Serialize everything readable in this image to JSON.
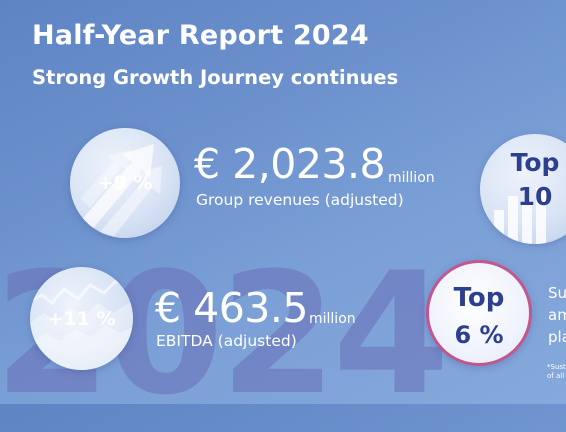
{
  "header": {
    "title": "Half-Year Report 2024",
    "subtitle": "Strong Growth Journey continues"
  },
  "background": {
    "year": "2024"
  },
  "kpis": [
    {
      "change": "+9 %",
      "value": "€ 2,023.8",
      "unit": "million",
      "label": "Group revenues (adjusted)",
      "icon": "arrow-up-icon"
    },
    {
      "change": "+11 %",
      "value": "€ 463.5",
      "unit": "million",
      "label": "EBITDA (adjusted)",
      "icon": "mountain-chart-icon"
    }
  ],
  "badges": [
    {
      "top": "Top",
      "rank": "10",
      "icon": "bar-chart-icon"
    },
    {
      "top": "Top",
      "rank": "6 %"
    }
  ],
  "side_text": [
    "Su",
    "am",
    "pla"
  ],
  "footnote": [
    "*Sust",
    "of all"
  ],
  "colors": {
    "background": "#6c91cd",
    "accent_navy": "#2d3f8f",
    "ring_pink": "#c2568f",
    "watermark": "#6a6fb8"
  }
}
